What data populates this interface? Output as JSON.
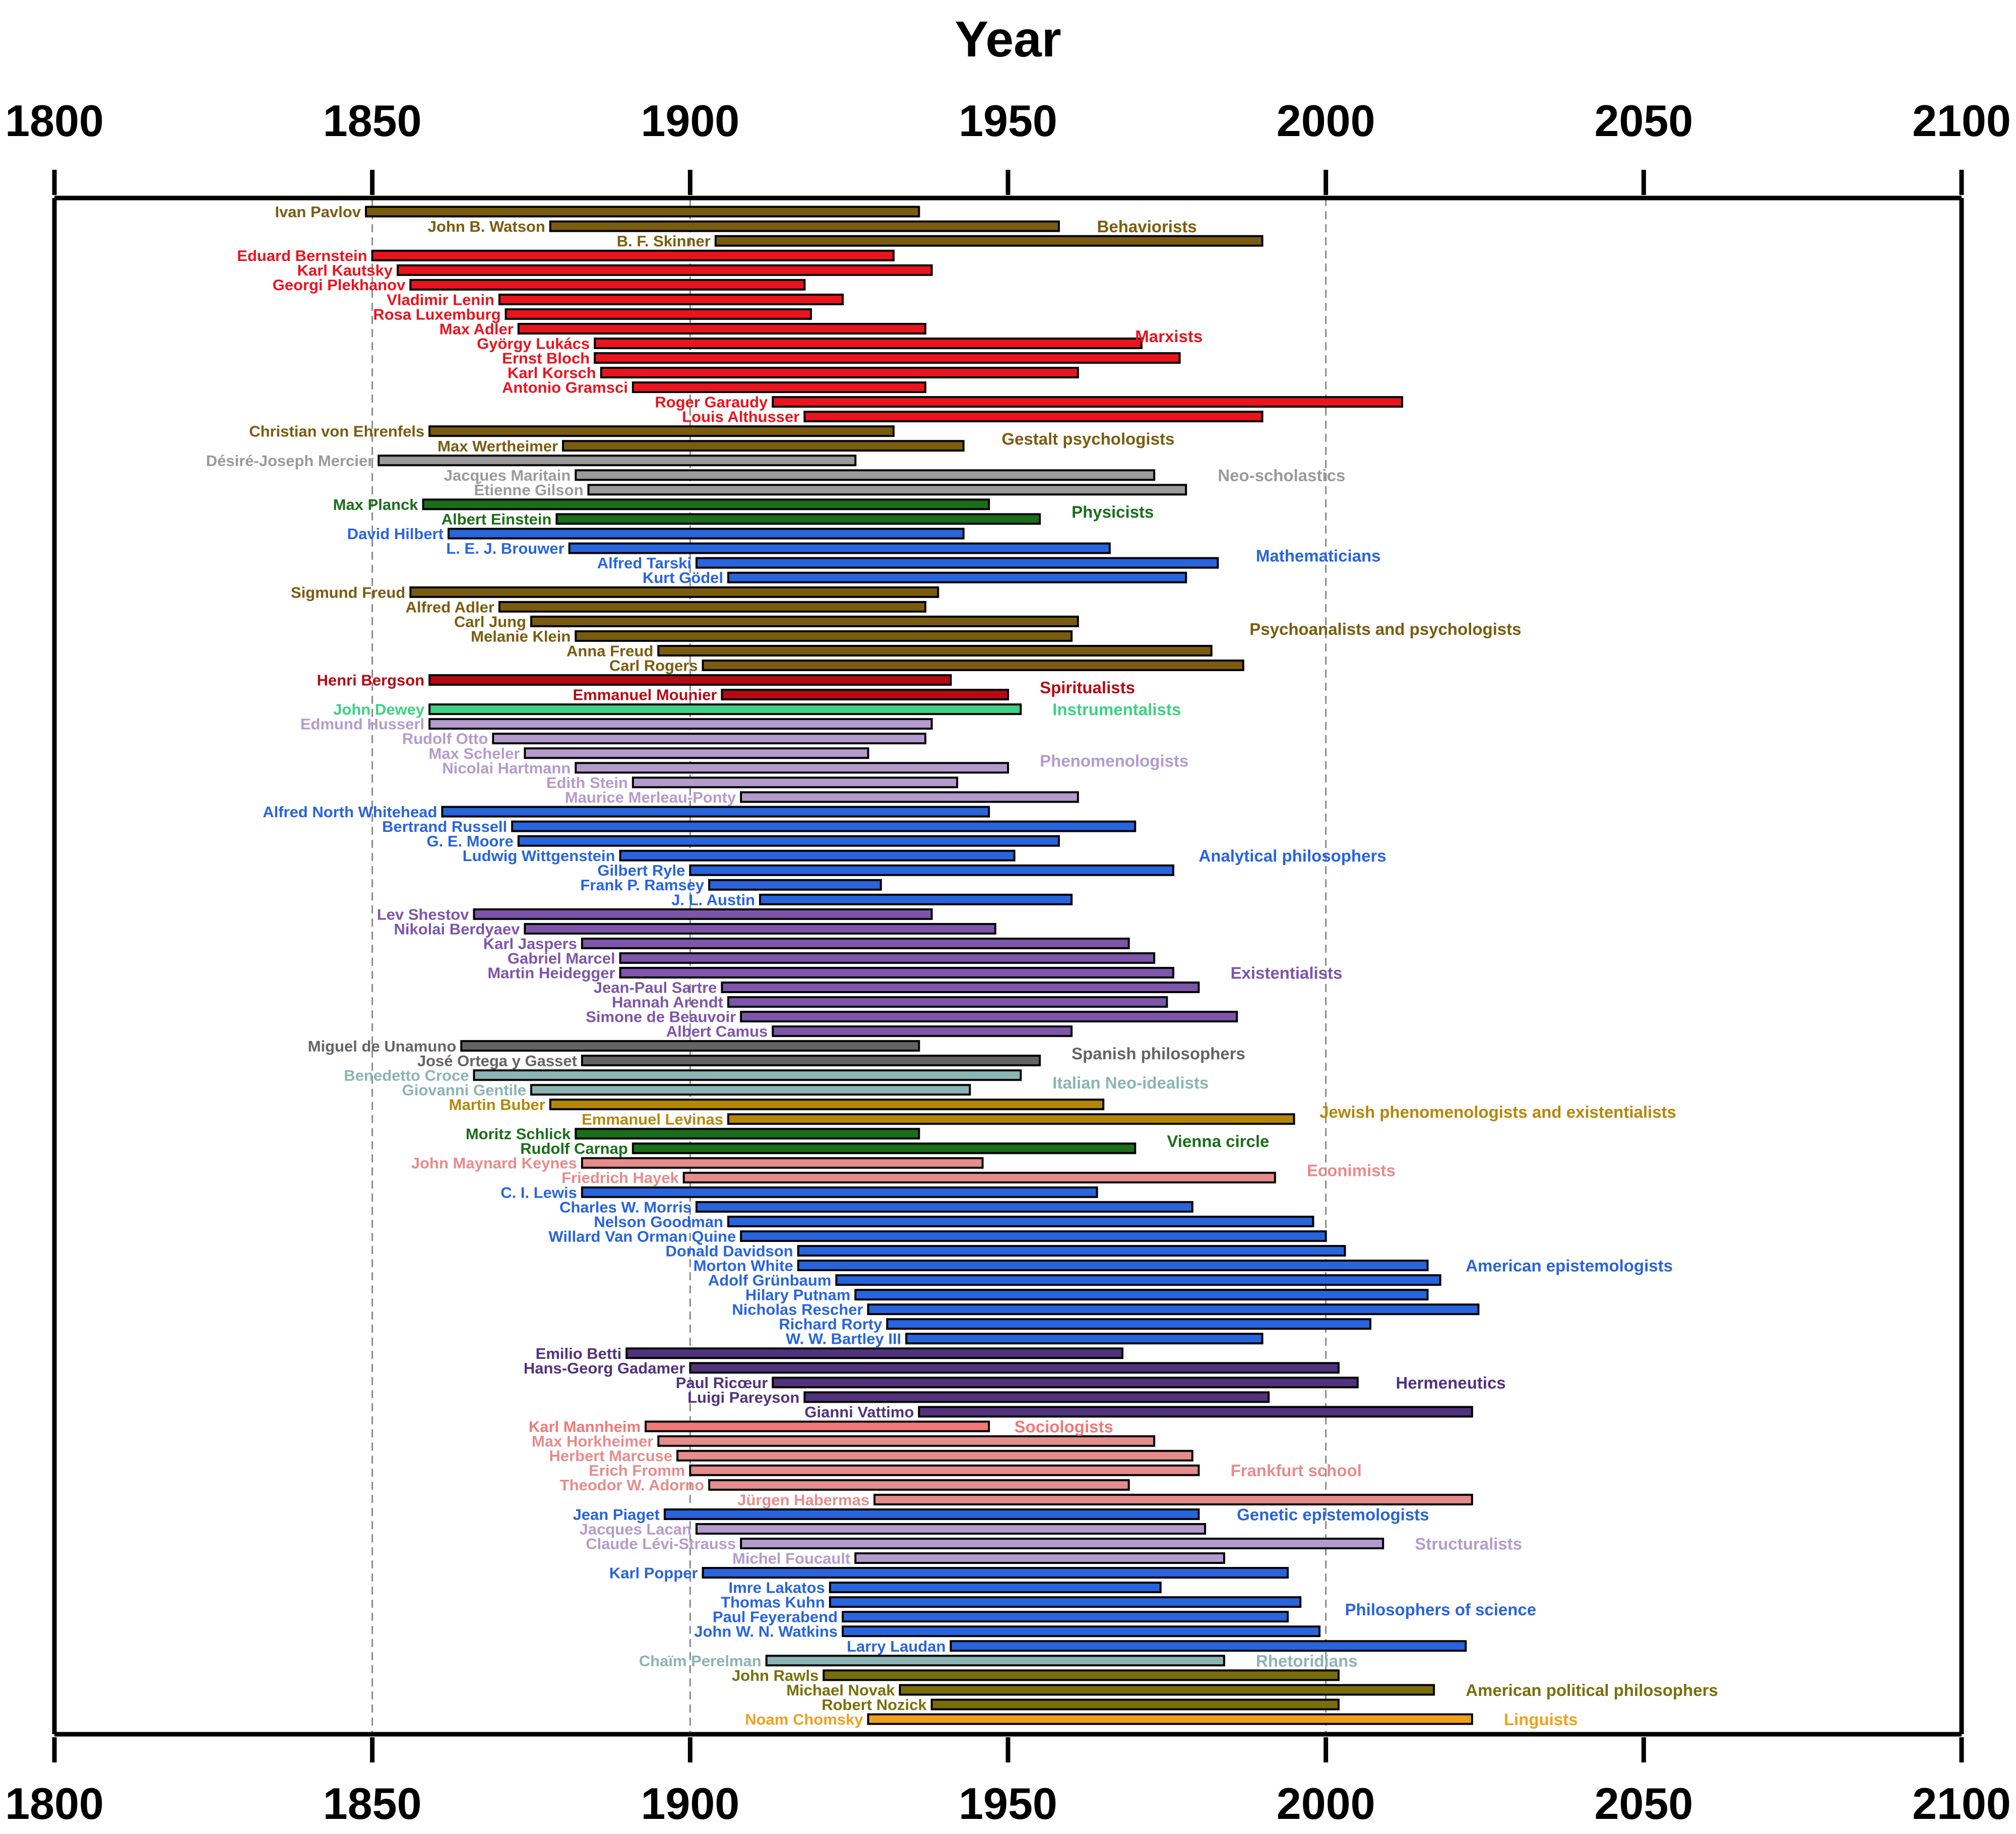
{
  "chart_data": {
    "type": "timeline",
    "title": "Year",
    "xlabel": "Year",
    "xlim": [
      1800,
      2100
    ],
    "xticks": [
      1800,
      1850,
      1900,
      1950,
      2000,
      2050,
      2100
    ],
    "reference_lines": [
      1850,
      1900,
      2000
    ],
    "groups": [
      {
        "name": "Behaviorists",
        "color": "#7a5c10",
        "label_x": 1964,
        "members": [
          {
            "name": "Ivan Pavlov",
            "start": 1849,
            "end": 1936
          },
          {
            "name": "John B. Watson",
            "start": 1878,
            "end": 1958
          },
          {
            "name": "B. F. Skinner",
            "start": 1904,
            "end": 1990
          }
        ]
      },
      {
        "name": "Marxists",
        "color": "#e8141e",
        "label_x": 1970,
        "members": [
          {
            "name": "Eduard Bernstein",
            "start": 1850,
            "end": 1932
          },
          {
            "name": "Karl Kautsky",
            "start": 1854,
            "end": 1938
          },
          {
            "name": "Georgi Plekhanov",
            "start": 1856,
            "end": 1918
          },
          {
            "name": "Vladimir Lenin",
            "start": 1870,
            "end": 1924
          },
          {
            "name": "Rosa Luxemburg",
            "start": 1871,
            "end": 1919
          },
          {
            "name": "Max Adler",
            "start": 1873,
            "end": 1937
          },
          {
            "name": "György Lukács",
            "start": 1885,
            "end": 1971
          },
          {
            "name": "Ernst Bloch",
            "start": 1885,
            "end": 1977
          },
          {
            "name": "Karl Korsch",
            "start": 1886,
            "end": 1961
          },
          {
            "name": "Antonio Gramsci",
            "start": 1891,
            "end": 1937
          },
          {
            "name": "Roger Garaudy",
            "start": 1913,
            "end": 2012
          },
          {
            "name": "Louis Althusser",
            "start": 1918,
            "end": 1990
          }
        ]
      },
      {
        "name": "Gestalt psychologists",
        "color": "#7a5c10",
        "label_x": 1949,
        "members": [
          {
            "name": "Christian von Ehrenfels",
            "start": 1859,
            "end": 1932
          },
          {
            "name": "Max Wertheimer",
            "start": 1880,
            "end": 1943
          }
        ]
      },
      {
        "name": "Neo-scholastics",
        "color": "#9a9a9a",
        "label_x": 1983,
        "members": [
          {
            "name": "Désiré-Joseph Mercier",
            "start": 1851,
            "end": 1926
          },
          {
            "name": "Jacques Maritain",
            "start": 1882,
            "end": 1973
          },
          {
            "name": "Étienne Gilson",
            "start": 1884,
            "end": 1978
          }
        ]
      },
      {
        "name": "Physicists",
        "color": "#1a6e1a",
        "label_x": 1960,
        "members": [
          {
            "name": "Max Planck",
            "start": 1858,
            "end": 1947
          },
          {
            "name": "Albert Einstein",
            "start": 1879,
            "end": 1955
          }
        ]
      },
      {
        "name": "Mathematicians",
        "color": "#2864dc",
        "label_x": 1989,
        "members": [
          {
            "name": "David Hilbert",
            "start": 1862,
            "end": 1943
          },
          {
            "name": "L. E. J. Brouwer",
            "start": 1881,
            "end": 1966
          },
          {
            "name": "Alfred Tarski",
            "start": 1901,
            "end": 1983
          },
          {
            "name": "Kurt Gödel",
            "start": 1906,
            "end": 1978
          }
        ]
      },
      {
        "name": "Psychoanalists and psychologists",
        "color": "#7a5c10",
        "label_x": 1988,
        "members": [
          {
            "name": "Sigmund Freud",
            "start": 1856,
            "end": 1939
          },
          {
            "name": "Alfred Adler",
            "start": 1870,
            "end": 1937
          },
          {
            "name": "Carl Jung",
            "start": 1875,
            "end": 1961
          },
          {
            "name": "Melanie Klein",
            "start": 1882,
            "end": 1960
          },
          {
            "name": "Anna Freud",
            "start": 1895,
            "end": 1982
          },
          {
            "name": "Carl Rogers",
            "start": 1902,
            "end": 1987
          }
        ]
      },
      {
        "name": "Spiritualists",
        "color": "#b40a14",
        "label_x": 1955,
        "members": [
          {
            "name": "Henri Bergson",
            "start": 1859,
            "end": 1941
          },
          {
            "name": "Emmanuel Mounier",
            "start": 1905,
            "end": 1950
          }
        ]
      },
      {
        "name": "Instrumentalists",
        "color": "#3cd282",
        "label_x": 1957,
        "members": [
          {
            "name": "John Dewey",
            "start": 1859,
            "end": 1952
          }
        ]
      },
      {
        "name": "Phenomenologists",
        "color": "#b49bcd",
        "label_x": 1955,
        "members": [
          {
            "name": "Edmund Husserl",
            "start": 1859,
            "end": 1938
          },
          {
            "name": "Rudolf Otto",
            "start": 1869,
            "end": 1937
          },
          {
            "name": "Max Scheler",
            "start": 1874,
            "end": 1928
          },
          {
            "name": "Nicolai Hartmann",
            "start": 1882,
            "end": 1950
          },
          {
            "name": "Edith Stein",
            "start": 1891,
            "end": 1942
          },
          {
            "name": "Maurice Merleau-Ponty",
            "start": 1908,
            "end": 1961
          }
        ]
      },
      {
        "name": "Analytical philosophers",
        "color": "#2864dc",
        "label_x": 1980,
        "members": [
          {
            "name": "Alfred North Whitehead",
            "start": 1861,
            "end": 1947
          },
          {
            "name": "Bertrand Russell",
            "start": 1872,
            "end": 1970
          },
          {
            "name": "G. E. Moore",
            "start": 1873,
            "end": 1958
          },
          {
            "name": "Ludwig Wittgenstein",
            "start": 1889,
            "end": 1951
          },
          {
            "name": "Gilbert Ryle",
            "start": 1900,
            "end": 1976
          },
          {
            "name": "Frank P. Ramsey",
            "start": 1903,
            "end": 1930
          },
          {
            "name": "J. L. Austin",
            "start": 1911,
            "end": 1960
          }
        ]
      },
      {
        "name": "Existentialists",
        "color": "#7d55aa",
        "label_x": 1985,
        "members": [
          {
            "name": "Lev Shestov",
            "start": 1866,
            "end": 1938
          },
          {
            "name": "Nikolai Berdyaev",
            "start": 1874,
            "end": 1948
          },
          {
            "name": "Karl Jaspers",
            "start": 1883,
            "end": 1969
          },
          {
            "name": "Gabriel Marcel",
            "start": 1889,
            "end": 1973
          },
          {
            "name": "Martin Heidegger",
            "start": 1889,
            "end": 1976
          },
          {
            "name": "Jean-Paul Sartre",
            "start": 1905,
            "end": 1980
          },
          {
            "name": "Hannah Arendt",
            "start": 1906,
            "end": 1975
          },
          {
            "name": "Simone de Beauvoir",
            "start": 1908,
            "end": 1986
          },
          {
            "name": "Albert Camus",
            "start": 1913,
            "end": 1960
          }
        ]
      },
      {
        "name": "Spanish philosophers",
        "color": "#646464",
        "label_x": 1960,
        "members": [
          {
            "name": "Miguel de Unamuno",
            "start": 1864,
            "end": 1936
          },
          {
            "name": "José Ortega y Gasset",
            "start": 1883,
            "end": 1955
          }
        ]
      },
      {
        "name": "Italian Neo-idealists",
        "color": "#8cb4b4",
        "label_x": 1957,
        "members": [
          {
            "name": "Benedetto Croce",
            "start": 1866,
            "end": 1952
          },
          {
            "name": "Giovanni Gentile",
            "start": 1875,
            "end": 1944
          }
        ]
      },
      {
        "name": "Jewish phenomenologists and existentialists",
        "color": "#b4870a",
        "label_x": 1999,
        "members": [
          {
            "name": "Martin Buber",
            "start": 1878,
            "end": 1965
          },
          {
            "name": "Emmanuel Levinas",
            "start": 1906,
            "end": 1995
          }
        ]
      },
      {
        "name": "Vienna circle",
        "color": "#1a6e1a",
        "label_x": 1975,
        "members": [
          {
            "name": "Moritz Schlick",
            "start": 1882,
            "end": 1936
          },
          {
            "name": "Rudolf Carnap",
            "start": 1891,
            "end": 1970
          }
        ]
      },
      {
        "name": "Econimists",
        "color": "#e68c8c",
        "label_x": 1997,
        "members": [
          {
            "name": "John Maynard Keynes",
            "start": 1883,
            "end": 1946
          },
          {
            "name": "Friedrich Hayek",
            "start": 1899,
            "end": 1992
          }
        ]
      },
      {
        "name": "American epistemologists",
        "color": "#2864dc",
        "label_x": 2022,
        "members": [
          {
            "name": "C. I. Lewis",
            "start": 1883,
            "end": 1964
          },
          {
            "name": "Charles W. Morris",
            "start": 1901,
            "end": 1979
          },
          {
            "name": "Nelson Goodman",
            "start": 1906,
            "end": 1998
          },
          {
            "name": "Willard Van Orman Quine",
            "start": 1908,
            "end": 2000
          },
          {
            "name": "Donald Davidson",
            "start": 1917,
            "end": 2003
          },
          {
            "name": "Morton White",
            "start": 1917,
            "end": 2016
          },
          {
            "name": "Adolf Grünbaum",
            "start": 1923,
            "end": 2018
          },
          {
            "name": "Hilary Putnam",
            "start": 1926,
            "end": 2016
          },
          {
            "name": "Nicholas Rescher",
            "start": 1928,
            "end": 2024
          },
          {
            "name": "Richard Rorty",
            "start": 1931,
            "end": 2007
          },
          {
            "name": "W. W. Bartley III",
            "start": 1934,
            "end": 1990
          }
        ]
      },
      {
        "name": "Hermeneutics",
        "color": "#50327d",
        "label_x": 2011,
        "members": [
          {
            "name": "Emilio Betti",
            "start": 1890,
            "end": 1968
          },
          {
            "name": "Hans-Georg Gadamer",
            "start": 1900,
            "end": 2002
          },
          {
            "name": "Paul Ricœur",
            "start": 1913,
            "end": 2005
          },
          {
            "name": "Luigi Pareyson",
            "start": 1918,
            "end": 1991
          },
          {
            "name": "Gianni Vattimo",
            "start": 1936,
            "end": 2023
          }
        ]
      },
      {
        "name": "Sociologists",
        "color": "#f07878",
        "label_x": 1951,
        "members": [
          {
            "name": "Karl Mannheim",
            "start": 1893,
            "end": 1947
          }
        ]
      },
      {
        "name": "Frankfurt school",
        "color": "#e68c8c",
        "label_x": 1985,
        "members": [
          {
            "name": "Max Horkheimer",
            "start": 1895,
            "end": 1973
          },
          {
            "name": "Herbert Marcuse",
            "start": 1898,
            "end": 1979
          },
          {
            "name": "Erich Fromm",
            "start": 1900,
            "end": 1980
          },
          {
            "name": "Theodor W. Adorno",
            "start": 1903,
            "end": 1969
          },
          {
            "name": "Jürgen Habermas",
            "start": 1929,
            "end": 2023
          }
        ]
      },
      {
        "name": "Genetic epistemologists",
        "color": "#2864dc",
        "label_x": 1986,
        "members": [
          {
            "name": "Jean Piaget",
            "start": 1896,
            "end": 1980
          }
        ]
      },
      {
        "name": "Structuralists",
        "color": "#b49bcd",
        "label_x": 2014,
        "members": [
          {
            "name": "Jacques Lacan",
            "start": 1901,
            "end": 1981
          },
          {
            "name": "Claude Lévi-Strauss",
            "start": 1908,
            "end": 2009
          },
          {
            "name": "Michel Foucault",
            "start": 1926,
            "end": 1984
          }
        ]
      },
      {
        "name": "Philosophers of science",
        "color": "#2864dc",
        "label_x": 2003,
        "members": [
          {
            "name": "Karl Popper",
            "start": 1902,
            "end": 1994
          },
          {
            "name": "Imre Lakatos",
            "start": 1922,
            "end": 1974
          },
          {
            "name": "Thomas Kuhn",
            "start": 1922,
            "end": 1996
          },
          {
            "name": "Paul Feyerabend",
            "start": 1924,
            "end": 1994
          },
          {
            "name": "John W. N. Watkins",
            "start": 1924,
            "end": 1999
          },
          {
            "name": "Larry Laudan",
            "start": 1941,
            "end": 2022
          }
        ]
      },
      {
        "name": "Rhetoridians",
        "color": "#8cb4b4",
        "label_x": 1989,
        "members": [
          {
            "name": "Chaïm Perelman",
            "start": 1912,
            "end": 1984
          }
        ]
      },
      {
        "name": "American political philosophers",
        "color": "#7a6e0a",
        "label_x": 2022,
        "members": [
          {
            "name": "John Rawls",
            "start": 1921,
            "end": 2002
          },
          {
            "name": "Michael Novak",
            "start": 1933,
            "end": 2017
          },
          {
            "name": "Robert Nozick",
            "start": 1938,
            "end": 2002
          }
        ]
      },
      {
        "name": "Linguists",
        "color": "#f0a01e",
        "label_x": 2028,
        "members": [
          {
            "name": "Noam Chomsky",
            "start": 1928,
            "end": 2023
          }
        ]
      }
    ]
  }
}
